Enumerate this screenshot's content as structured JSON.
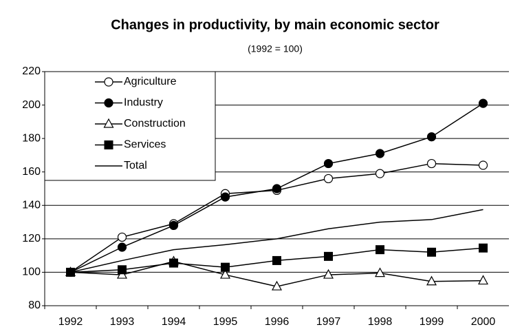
{
  "chart_data": {
    "type": "line",
    "title": "Changes in productivity, by main economic sector",
    "subtitle": "(1992 = 100)",
    "categories": [
      "1992",
      "1993",
      "1994",
      "1995",
      "1996",
      "1997",
      "1998",
      "1999",
      "2000"
    ],
    "series": [
      {
        "name": "Agriculture",
        "color": "#000000",
        "marker": "open-circle",
        "values": [
          100,
          121,
          129,
          147,
          149,
          156,
          159,
          165,
          164
        ]
      },
      {
        "name": "Industry",
        "color": "#000000",
        "marker": "filled-circle",
        "values": [
          100,
          115,
          128,
          145,
          150,
          165,
          171,
          181,
          201
        ]
      },
      {
        "name": "Construction",
        "color": "#000000",
        "marker": "open-triangle",
        "values": [
          100,
          98.5,
          106.5,
          98.5,
          91.5,
          98.5,
          99.5,
          94.5,
          95
        ]
      },
      {
        "name": "Services",
        "color": "#000000",
        "marker": "filled-square",
        "values": [
          100,
          101.5,
          105.5,
          103,
          107,
          109.5,
          113.5,
          112,
          114.5
        ]
      },
      {
        "name": "Total",
        "color": "#000000",
        "marker": "none",
        "values": [
          100,
          107,
          113.5,
          116.5,
          120,
          126,
          130,
          131.5,
          137.5
        ]
      }
    ],
    "ylim": [
      80,
      220
    ],
    "yticks": [
      80,
      100,
      120,
      140,
      160,
      180,
      200,
      220
    ],
    "grid": true,
    "legend": "upper left"
  }
}
